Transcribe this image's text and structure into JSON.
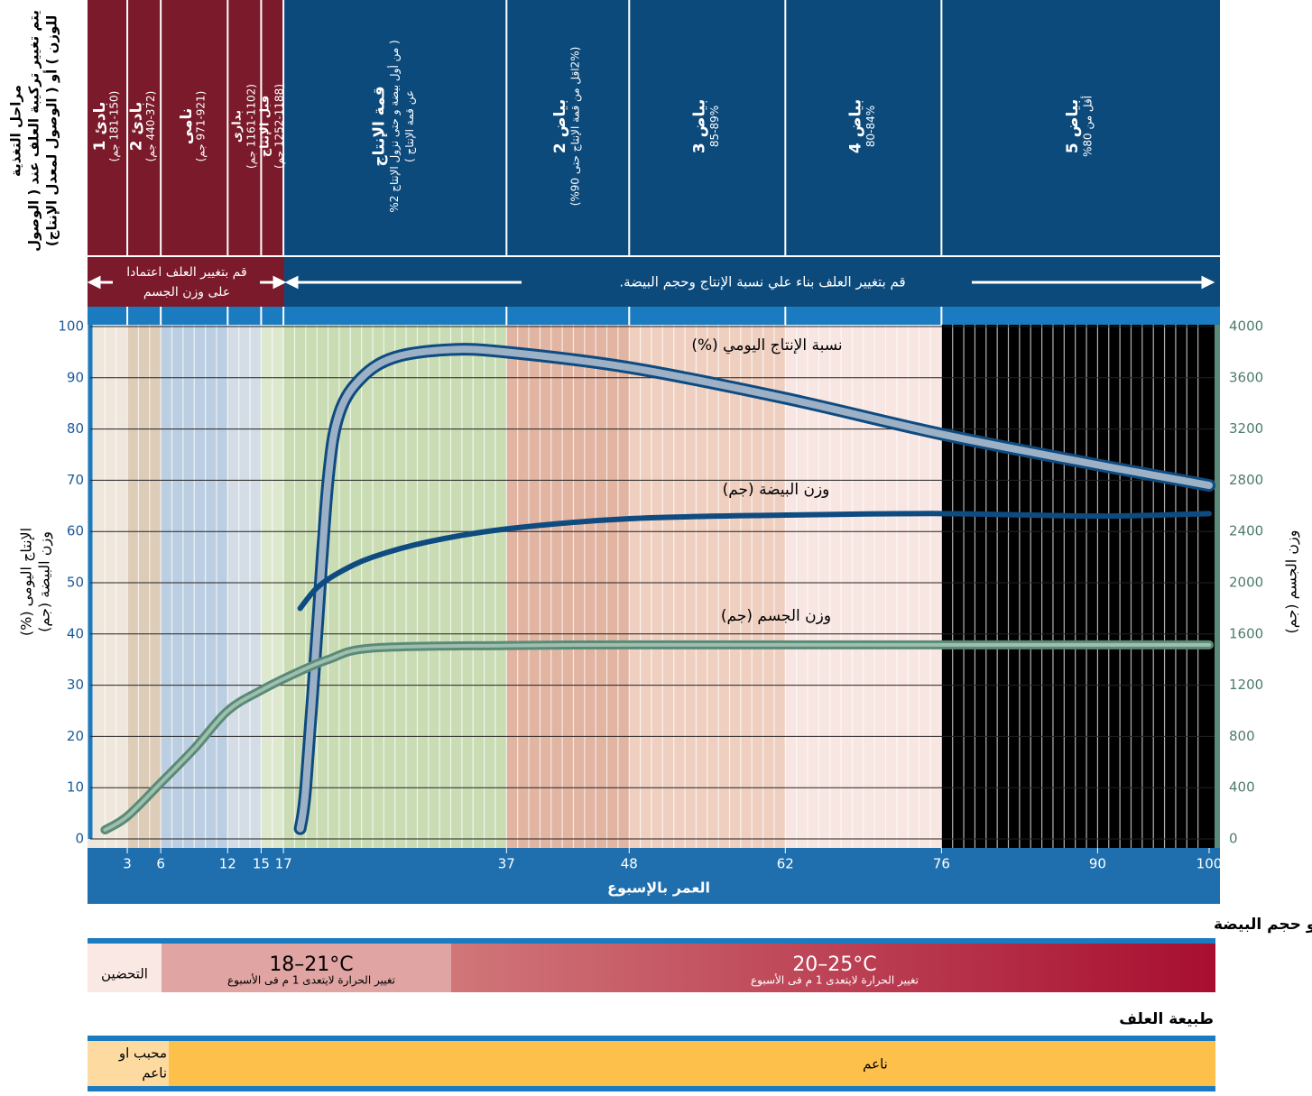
{
  "feed_stages": {
    "side_label": [
      "مراحل التغذية",
      "يتم تغيير تركيبة العلف عند ( الوصول",
      "للوزن ) أو ( الوصول لمعدل الإنتاج)"
    ],
    "stages": [
      {
        "lines": [
          "بادئ 1",
          "(181-150 جم)"
        ]
      },
      {
        "lines": [
          "بادئ 2",
          "(440-372 جم)"
        ]
      },
      {
        "lines": [
          "نامى",
          "(971-921 جم)"
        ]
      },
      {
        "lines": [
          "بدارى",
          "(1161-1102 جم)"
        ]
      },
      {
        "lines": [
          "قبل الإنتاج",
          "(1252-1188 جم)"
        ]
      },
      {
        "lines": [
          "قمة الإنتاج",
          "( من أول بيضة و حتى نزول الإنتاج 2%",
          "عن قمة الإنتاج )"
        ]
      },
      {
        "lines": [
          "بياض 2",
          "(2%اقل من قمة الإنتاج حتى 90%)"
        ]
      },
      {
        "lines": [
          "بياض 3",
          "85-89%"
        ]
      },
      {
        "lines": [
          "بياض 4",
          "80-84%"
        ]
      },
      {
        "lines": [
          "بياض 5",
          "أقل من 80%"
        ]
      }
    ],
    "by_weight": [
      "قم بتغيير العلف اعتمادا",
      "على وزن الجسم"
    ],
    "by_production": "قم بتغيير العلف بناء علي نسبة الإنتاج وحجم البيضة."
  },
  "chart_data": {
    "type": "line",
    "xlabel": "العمر بالإسبوع",
    "ylabel": [
      "الإنتاج اليومى (%)",
      "وزن البيضة (جم)"
    ],
    "y2label": "وزن الجسم (جم)",
    "xlim": [
      0,
      100
    ],
    "xticks": [
      3,
      6,
      12,
      15,
      17,
      37,
      48,
      62,
      76,
      90,
      100
    ],
    "ylim": [
      0,
      100
    ],
    "yticks": [
      0,
      10,
      20,
      30,
      40,
      50,
      60,
      70,
      80,
      90,
      100
    ],
    "y2lim": [
      0,
      4000
    ],
    "y2ticks": [
      0,
      400,
      800,
      1200,
      1600,
      2000,
      2400,
      2800,
      3200,
      3600,
      4000
    ],
    "grid": true,
    "series": [
      {
        "name": "نسبة الإنتاج اليومي (%)",
        "color": "#0e4b80",
        "x": [
          18.5,
          19,
          20,
          21,
          22,
          24,
          27,
          32,
          37,
          48,
          62,
          76,
          90,
          100
        ],
        "values": [
          2,
          10,
          40,
          70,
          83,
          90,
          94,
          95.5,
          95,
          92,
          86,
          79,
          73,
          69
        ]
      },
      {
        "name": "وزن البيضة (جم)",
        "color": "#0e4b80",
        "x": [
          18.5,
          20,
          22,
          25,
          30,
          37,
          48,
          62,
          76,
          90,
          100
        ],
        "values": [
          45,
          49,
          52,
          55,
          58,
          60.5,
          62.5,
          63.2,
          63.5,
          63,
          63.5
        ]
      },
      {
        "name": "وزن الجسم (جم)",
        "color": "#5a8a78",
        "axis": "y2",
        "x": [
          1,
          3,
          6,
          9,
          12,
          15,
          18,
          21,
          25,
          37,
          48,
          62,
          76,
          90,
          100
        ],
        "values": [
          70,
          176,
          437,
          704,
          1000,
          1160,
          1290,
          1400,
          1490,
          1510,
          1515,
          1515,
          1515,
          1515,
          1515
        ]
      }
    ]
  },
  "temperature": {
    "title": "درجة حرارة العنبر: تستخدم الحرارة للتحكم فى استهلاك العلف و حجم البيضة",
    "brooding": "التحضين",
    "ranges": [
      {
        "range": "18–21°C",
        "note": "تغيير الحرارة لايتعدى 1 م فى الأسبوع"
      },
      {
        "range": "20–25°C",
        "note": "تغيير الحرارة لايتعدى 1 م فى الأسبوع"
      }
    ]
  },
  "feed": {
    "title": "طبيعة العلف",
    "first": [
      "محبب او",
      "ناعم"
    ],
    "rest": "ناعم"
  }
}
